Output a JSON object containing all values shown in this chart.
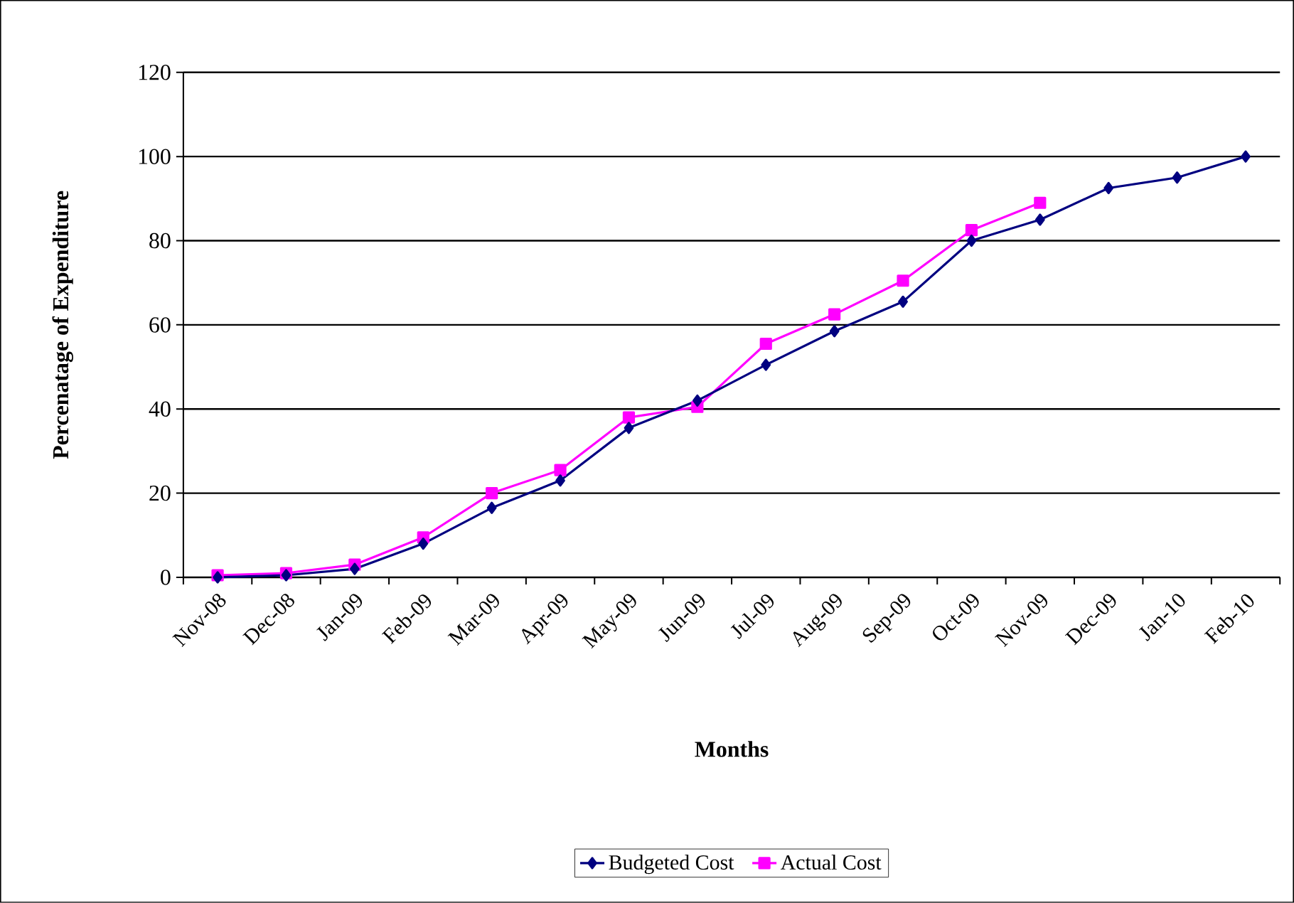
{
  "chart_data": {
    "type": "line",
    "xlabel": "Months",
    "ylabel": "Percenatage of Expenditure",
    "categories": [
      "Nov-08",
      "Dec-08",
      "Jan-09",
      "Feb-09",
      "Mar-09",
      "Apr-09",
      "May-09",
      "Jun-09",
      "Jul-09",
      "Aug-09",
      "Sep-09",
      "Oct-09",
      "Nov-09",
      "Dec-09",
      "Jan-10",
      "Feb-10"
    ],
    "series": [
      {
        "name": "Budgeted Cost",
        "color": "#000080",
        "marker": "diamond",
        "values": [
          0,
          0.5,
          2,
          8,
          16.5,
          23,
          35.5,
          42,
          50.5,
          58.5,
          65.5,
          80,
          85,
          92.5,
          95,
          100
        ]
      },
      {
        "name": "Actual Cost",
        "color": "#ff00ff",
        "marker": "square",
        "values": [
          0.5,
          1,
          3,
          9.5,
          20,
          25.5,
          38,
          40.5,
          55.5,
          62.5,
          70.5,
          82.5,
          89,
          null,
          null,
          null
        ]
      }
    ],
    "ylim": [
      0,
      120
    ],
    "yticks": [
      0,
      20,
      40,
      60,
      80,
      100,
      120
    ],
    "grid": "y",
    "legend": "bottom"
  }
}
